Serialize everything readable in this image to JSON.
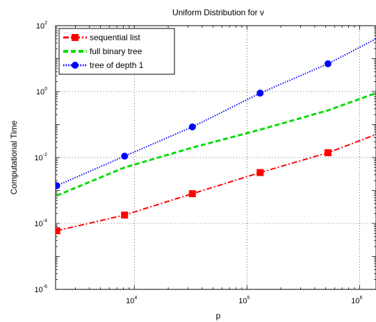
{
  "chart_data": {
    "type": "line",
    "title": "Uniform Distribution for v",
    "xlabel": "p",
    "ylabel": "Computational Time",
    "xscale": "log",
    "yscale": "log",
    "xlim": [
      2000,
      1400000
    ],
    "ylim": [
      1e-06,
      100
    ],
    "grid": true,
    "legend_position": "top-left",
    "x_ticks": [
      {
        "base": "10",
        "exp": "4",
        "value": 10000
      },
      {
        "base": "10",
        "exp": "5",
        "value": 100000
      },
      {
        "base": "10",
        "exp": "6",
        "value": 1000000
      }
    ],
    "y_ticks": [
      {
        "base": "10",
        "exp": "2",
        "value": 100
      },
      {
        "base": "10",
        "exp": "0",
        "value": 1
      },
      {
        "base": "10",
        "exp": "-2",
        "value": 0.01
      },
      {
        "base": "10",
        "exp": "-4",
        "value": 0.0001
      },
      {
        "base": "10",
        "exp": "-6",
        "value": 1e-06
      }
    ],
    "series": [
      {
        "name": "sequential list",
        "color": "#ff0000",
        "line_style": "dashdot",
        "marker": "square",
        "x": [
          2048,
          8192,
          32768,
          131072,
          524288
        ],
        "y": [
          6e-05,
          0.00018,
          0.0008,
          0.0035,
          0.014
        ],
        "line_end": {
          "x": 1400000,
          "y": 0.05
        }
      },
      {
        "name": "full binary tree",
        "color": "#00dd00",
        "line_style": "dashed",
        "marker": "none",
        "x": [
          2048,
          8192,
          32768,
          131072,
          524288
        ],
        "y": [
          0.0007,
          0.005,
          0.02,
          0.07,
          0.27
        ],
        "line_end": {
          "x": 1400000,
          "y": 0.9
        }
      },
      {
        "name": "tree of depth 1",
        "color": "#0000ff",
        "line_style": "dotted",
        "marker": "circle",
        "x": [
          2048,
          8192,
          32768,
          131072,
          524288
        ],
        "y": [
          0.0014,
          0.011,
          0.085,
          0.9,
          7
        ],
        "line_end": {
          "x": 1400000,
          "y": 40
        }
      }
    ]
  }
}
